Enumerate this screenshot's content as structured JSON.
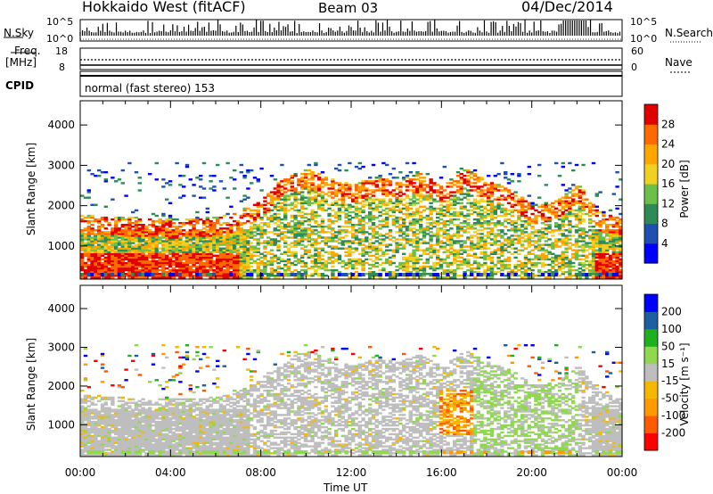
{
  "header": {
    "station": "Hokkaido West (fitACF)",
    "beam": "Beam 03",
    "date": "04/Dec/2014"
  },
  "top_panels": {
    "nsky_label": "N.Sky",
    "nsky_ticks": [
      "10^5",
      "10^0"
    ],
    "nsearch_label": "N.Search",
    "nsearch_ticks": [
      "10^5",
      "10^0"
    ],
    "freq_label_1": "Freq.",
    "freq_label_2": "[MHz]",
    "freq_ticks": [
      "18",
      "8"
    ],
    "nave_label": "Nave",
    "nave_ticks": [
      "60",
      "0"
    ],
    "cpid_label": "CPID",
    "cpid_text": "normal (fast stereo) 153"
  },
  "colors": {
    "power_scale": [
      "#0000ff",
      "#1f4fb0",
      "#2e8b57",
      "#6cc04a",
      "#f0d020",
      "#ffa500",
      "#ff6a00",
      "#e00000"
    ],
    "velocity_scale": [
      "#ff0000",
      "#ff5a00",
      "#ff9a00",
      "#f5b800",
      "#bebebe",
      "#8fd850",
      "#1fb01f",
      "#1f5fa0",
      "#0000ff"
    ]
  },
  "chart_data": [
    {
      "type": "heatmap",
      "title": "",
      "ylabel": "Slant Range [km]",
      "xlabel": "",
      "xlim": [
        "00:00",
        "24:00"
      ],
      "ylim": [
        180,
        4600
      ],
      "y_ticks": [
        1000,
        2000,
        3000,
        4000
      ],
      "x_ticks": [
        "00:00",
        "04:00",
        "08:00",
        "12:00",
        "16:00",
        "20:00",
        "00:00"
      ],
      "colorbar": {
        "label": "Power [dB]",
        "range": [
          0,
          32
        ],
        "ticks": [
          "28",
          "24",
          "20",
          "16",
          "12",
          "8",
          "4"
        ]
      },
      "scatter_envelope_upper_km": [
        [
          0,
          1750
        ],
        [
          2,
          1700
        ],
        [
          4,
          1650
        ],
        [
          6,
          1700
        ],
        [
          7,
          1850
        ],
        [
          8,
          2200
        ],
        [
          9,
          2700
        ],
        [
          10,
          2900
        ],
        [
          11,
          2650
        ],
        [
          12,
          2500
        ],
        [
          13,
          2700
        ],
        [
          14,
          2600
        ],
        [
          15,
          2800
        ],
        [
          16,
          2500
        ],
        [
          17,
          2900
        ],
        [
          18,
          2600
        ],
        [
          19,
          2400
        ],
        [
          20,
          2000
        ],
        [
          21,
          2100
        ],
        [
          22,
          2500
        ],
        [
          23,
          1800
        ],
        [
          24,
          1700
        ]
      ]
    },
    {
      "type": "heatmap",
      "title": "",
      "ylabel": "Slant Range [km]",
      "xlabel": "Time UT",
      "xlim": [
        "00:00",
        "24:00"
      ],
      "ylim": [
        180,
        4600
      ],
      "y_ticks": [
        1000,
        2000,
        3000,
        4000
      ],
      "x_ticks": [
        "00:00",
        "04:00",
        "08:00",
        "12:00",
        "16:00",
        "20:00",
        "00:00"
      ],
      "colorbar": {
        "label": "Velocity [m s⁻¹]",
        "range": [
          -250,
          250
        ],
        "ticks": [
          "200",
          "100",
          "50",
          "15",
          "-15",
          "-50",
          "-100",
          "-200"
        ]
      }
    }
  ]
}
